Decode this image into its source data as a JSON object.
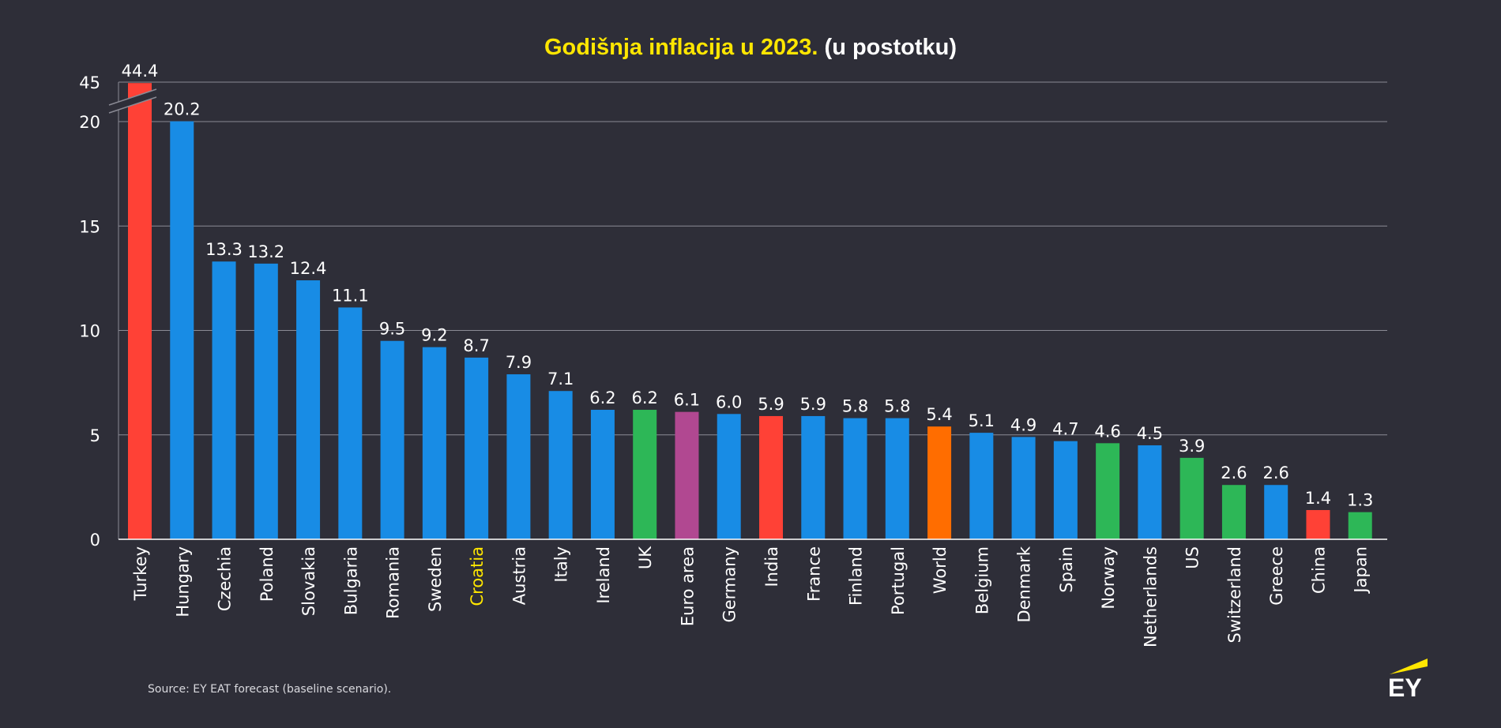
{
  "chart_data": {
    "type": "bar",
    "title": "Godišnja inflacija u 2023.",
    "subtitle": "(u postotku)",
    "categories": [
      "Turkey",
      "Hungary",
      "Czechia",
      "Poland",
      "Slovakia",
      "Bulgaria",
      "Romania",
      "Sweden",
      "Croatia",
      "Austria",
      "Italy",
      "Ireland",
      "UK",
      "Euro area",
      "Germany",
      "India",
      "France",
      "Finland",
      "Portugal",
      "World",
      "Belgium",
      "Denmark",
      "Spain",
      "Norway",
      "Netherlands",
      "US",
      "Switzerland",
      "Greece",
      "China",
      "Japan"
    ],
    "values": [
      44.4,
      20.2,
      13.3,
      13.2,
      12.4,
      11.1,
      9.5,
      9.2,
      8.7,
      7.9,
      7.1,
      6.2,
      6.2,
      6.1,
      6.0,
      5.9,
      5.9,
      5.8,
      5.8,
      5.4,
      5.1,
      4.9,
      4.7,
      4.6,
      4.5,
      3.9,
      2.6,
      2.6,
      1.4,
      1.3
    ],
    "value_labels": [
      "44.4",
      "20.2",
      "13.3",
      "13.2",
      "12.4",
      "11.1",
      "9.5",
      "9.2",
      "8.7",
      "7.9",
      "7.1",
      "6.2",
      "6.2",
      "6.1",
      "6.0",
      "5.9",
      "5.9",
      "5.8",
      "5.8",
      "5.4",
      "5.1",
      "4.9",
      "4.7",
      "4.6",
      "4.5",
      "3.9",
      "2.6",
      "2.6",
      "1.4",
      "1.3"
    ],
    "bar_colors": [
      "#ff4136",
      "#188ce5",
      "#188ce5",
      "#188ce5",
      "#188ce5",
      "#188ce5",
      "#188ce5",
      "#188ce5",
      "#188ce5",
      "#188ce5",
      "#188ce5",
      "#188ce5",
      "#2db757",
      "#b14891",
      "#188ce5",
      "#ff4136",
      "#188ce5",
      "#188ce5",
      "#188ce5",
      "#ff6d00",
      "#188ce5",
      "#188ce5",
      "#188ce5",
      "#2db757",
      "#188ce5",
      "#2db757",
      "#2db757",
      "#188ce5",
      "#ff4136",
      "#2db757"
    ],
    "highlight_category": "Croatia",
    "highlight_color": "#ffe600",
    "ytick_labels": [
      "0",
      "5",
      "10",
      "15",
      "20",
      "45"
    ],
    "ylim": [
      0,
      45
    ],
    "y_axis_break": [
      20,
      45
    ],
    "grid": true,
    "xlabel": "",
    "ylabel": ""
  },
  "source": "Source: EY EAT forecast (baseline scenario).",
  "logo": {
    "text": "EY",
    "accent_color": "#ffe600"
  },
  "colors": {
    "background": "#2e2e38",
    "grid": "#8a8a94",
    "text": "#ffffff"
  }
}
